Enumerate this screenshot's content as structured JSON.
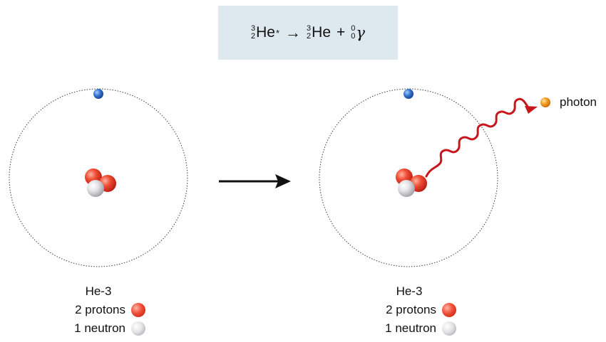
{
  "equation": {
    "reactant": {
      "mass": "3",
      "atomic": "2",
      "symbol": "He",
      "mark": "*"
    },
    "arrow": "→",
    "product1": {
      "mass": "3",
      "atomic": "2",
      "symbol": "He"
    },
    "plus": "+",
    "product2": {
      "mass": "0",
      "atomic": "0",
      "symbol": "γ"
    }
  },
  "left_atom": {
    "name": "He-3",
    "protons_label": "2 protons",
    "neutron_label": "1 neutron"
  },
  "right_atom": {
    "name": "He-3",
    "protons_label": "2 protons",
    "neutron_label": "1 neutron"
  },
  "photon_label": "photon",
  "colors": {
    "proton": "#e23b25",
    "neutron": "#d8d8dc",
    "electron": "#2f6fc8",
    "photon": "#f39a1e",
    "wave": "#c8161d",
    "equation_bg": "#dde9ee"
  }
}
